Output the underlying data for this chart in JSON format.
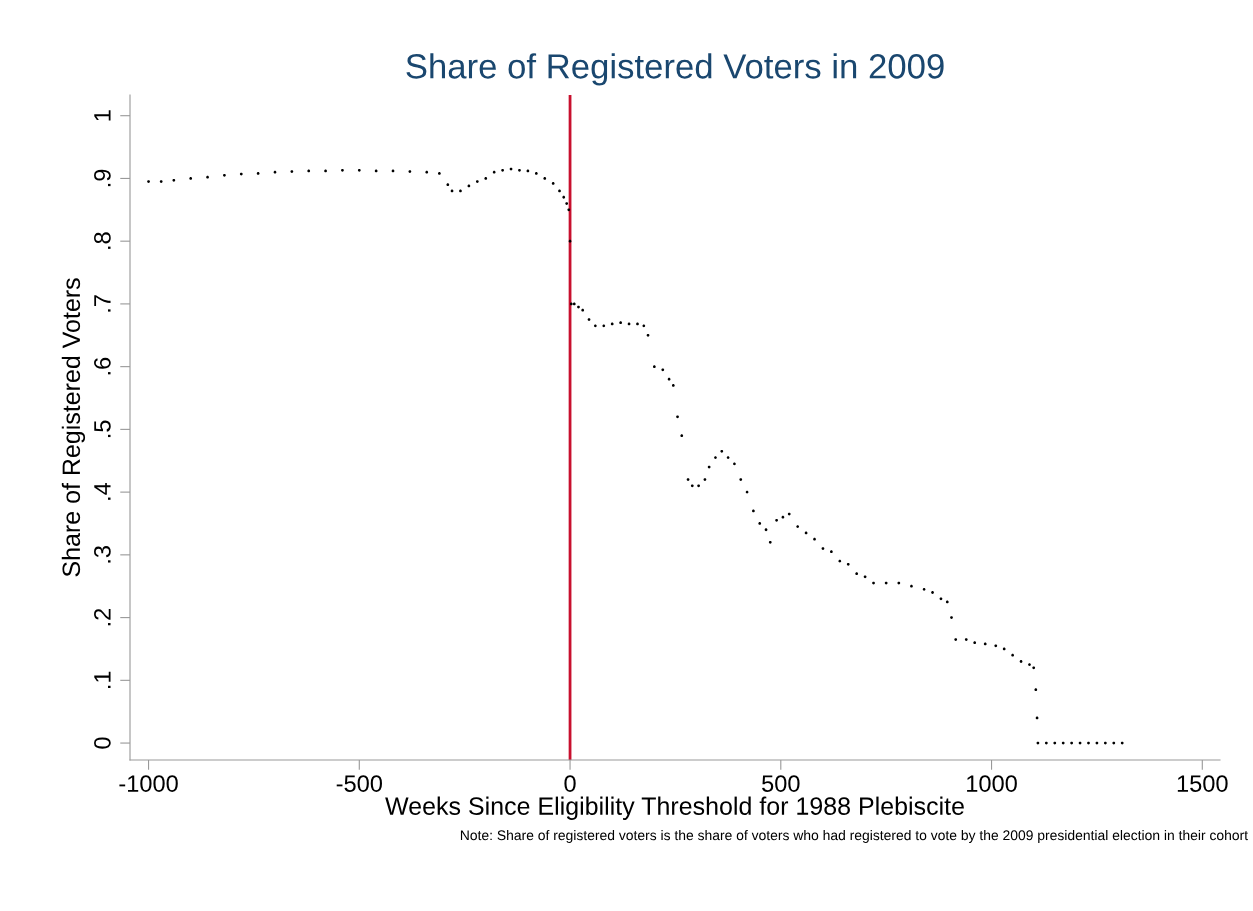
{
  "chart_data": {
    "type": "scatter",
    "title": "Share of Registered Voters in 2009",
    "xlabel": "Weeks Since Eligibility Threshold for 1988 Plebiscite",
    "ylabel": "Share of Registered Voters",
    "annotations": [
      "Note: Share of registered voters is the share of voters who had registered to vote by the 2009 presidential election in their cohort"
    ],
    "series": [
      {
        "color": "#000000",
        "x": [
          -1000,
          -970,
          -940,
          -900,
          -860,
          -820,
          -780,
          -740,
          -700,
          -660,
          -620,
          -580,
          -540,
          -500,
          -460,
          -420,
          -380,
          -340,
          -310,
          -290,
          -280,
          -260,
          -240,
          -220,
          -200,
          -180,
          -160,
          -140,
          -120,
          -100,
          -80,
          -60,
          -40,
          -25,
          -15,
          -8,
          -3,
          0,
          3,
          10,
          20,
          30,
          45,
          60,
          80,
          100,
          120,
          140,
          160,
          175,
          185,
          200,
          220,
          235,
          245,
          255,
          265,
          280,
          290,
          305,
          320,
          330,
          345,
          360,
          375,
          390,
          405,
          420,
          435,
          450,
          465,
          475,
          490,
          505,
          520,
          540,
          560,
          580,
          600,
          620,
          640,
          660,
          680,
          700,
          720,
          750,
          780,
          810,
          840,
          860,
          880,
          895,
          905,
          915,
          940,
          960,
          985,
          1010,
          1030,
          1050,
          1070,
          1090,
          1100,
          1105,
          1108,
          1110,
          1130,
          1150,
          1170,
          1190,
          1210,
          1230,
          1250,
          1270,
          1290,
          1310
        ],
        "values": [
          0.895,
          0.895,
          0.897,
          0.9,
          0.902,
          0.905,
          0.907,
          0.908,
          0.91,
          0.911,
          0.912,
          0.912,
          0.913,
          0.913,
          0.912,
          0.912,
          0.911,
          0.91,
          0.908,
          0.89,
          0.88,
          0.88,
          0.888,
          0.895,
          0.9,
          0.91,
          0.913,
          0.915,
          0.913,
          0.912,
          0.908,
          0.9,
          0.892,
          0.88,
          0.87,
          0.86,
          0.85,
          0.8,
          0.7,
          0.7,
          0.695,
          0.69,
          0.675,
          0.665,
          0.665,
          0.668,
          0.67,
          0.668,
          0.668,
          0.665,
          0.65,
          0.6,
          0.595,
          0.58,
          0.57,
          0.52,
          0.49,
          0.42,
          0.41,
          0.41,
          0.42,
          0.44,
          0.455,
          0.465,
          0.455,
          0.445,
          0.42,
          0.4,
          0.37,
          0.35,
          0.34,
          0.32,
          0.355,
          0.36,
          0.365,
          0.345,
          0.335,
          0.325,
          0.31,
          0.305,
          0.29,
          0.285,
          0.27,
          0.265,
          0.255,
          0.255,
          0.255,
          0.25,
          0.245,
          0.24,
          0.23,
          0.225,
          0.2,
          0.165,
          0.165,
          0.16,
          0.158,
          0.155,
          0.15,
          0.14,
          0.13,
          0.125,
          0.12,
          0.085,
          0.04,
          0.0,
          0.0,
          0.0,
          0.0,
          0.0,
          0.0,
          0.0,
          0.0,
          0.0,
          0.0,
          0.0
        ]
      }
    ],
    "marker": "circle",
    "grid": false,
    "xlim": [
      -1044,
      1542
    ],
    "xticks": [
      -1000,
      -500,
      0,
      500,
      1000,
      1500
    ],
    "ylim": [
      -0.027,
      1.033
    ],
    "yticks": [
      {
        "value": 0,
        "label": "0"
      },
      {
        "value": 0.1,
        "label": ".1"
      },
      {
        "value": 0.2,
        "label": ".2"
      },
      {
        "value": 0.3,
        "label": ".3"
      },
      {
        "value": 0.4,
        "label": ".4"
      },
      {
        "value": 0.5,
        "label": ".5"
      },
      {
        "value": 0.6,
        "label": ".6"
      },
      {
        "value": 0.7,
        "label": ".7"
      },
      {
        "value": 0.8,
        "label": ".8"
      },
      {
        "value": 0.9,
        "label": ".9"
      },
      {
        "value": 1,
        "label": "1"
      }
    ],
    "ref_lines": [
      {
        "axis": "x",
        "value": 0,
        "color": "#c8102e"
      }
    ]
  }
}
